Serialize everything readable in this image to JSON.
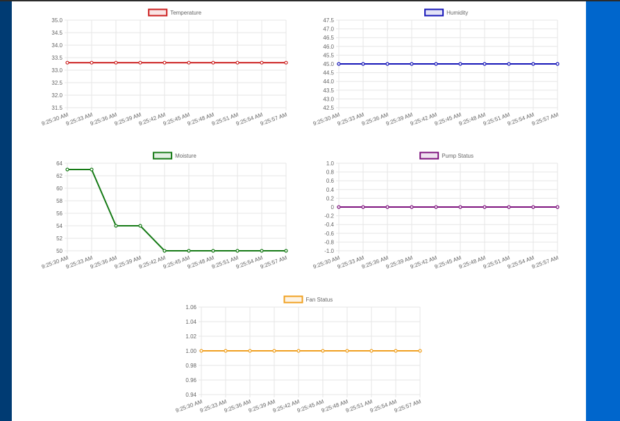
{
  "charts": [
    {
      "type": "line",
      "color": "#cc1f1f",
      "x": [
        "9:25:30 AM",
        "9:25:33 AM",
        "9:25:36 AM",
        "9:25:39 AM",
        "9:25:42 AM",
        "9:25:45 AM",
        "9:25:48 AM",
        "9:25:51 AM",
        "9:25:54 AM",
        "9:25:57 AM"
      ],
      "series": [
        {
          "name": "Temperature",
          "values": [
            33.3,
            33.3,
            33.3,
            33.3,
            33.3,
            33.3,
            33.3,
            33.3,
            33.3,
            33.3
          ]
        }
      ],
      "ylim": [
        31.5,
        35.0
      ],
      "yticks": [
        "35.0",
        "34.5",
        "34.0",
        "33.5",
        "33.0",
        "32.5",
        "32.0",
        "31.5"
      ],
      "legend_position": "top",
      "grid": true
    },
    {
      "type": "line",
      "color": "#1515b8",
      "x": [
        "9:25:30 AM",
        "9:25:33 AM",
        "9:25:36 AM",
        "9:25:39 AM",
        "9:25:42 AM",
        "9:25:45 AM",
        "9:25:48 AM",
        "9:25:51 AM",
        "9:25:54 AM",
        "9:25:57 AM"
      ],
      "series": [
        {
          "name": "Humidity",
          "values": [
            45,
            45,
            45,
            45,
            45,
            45,
            45,
            45,
            45,
            45
          ]
        }
      ],
      "ylim": [
        42.5,
        47.5
      ],
      "yticks": [
        "47.5",
        "47.0",
        "46.5",
        "46.0",
        "45.5",
        "45.0",
        "44.5",
        "44.0",
        "43.5",
        "43.0",
        "42.5"
      ],
      "legend_position": "top",
      "grid": true
    },
    {
      "type": "line",
      "color": "#157a15",
      "x": [
        "9:25:30 AM",
        "9:25:33 AM",
        "9:25:36 AM",
        "9:25:39 AM",
        "9:25:42 AM",
        "9:25:45 AM",
        "9:25:48 AM",
        "9:25:51 AM",
        "9:25:54 AM",
        "9:25:57 AM"
      ],
      "series": [
        {
          "name": "Moisture",
          "values": [
            63,
            63,
            54,
            54,
            50,
            50,
            50,
            50,
            50,
            50
          ]
        }
      ],
      "ylim": [
        50,
        64
      ],
      "yticks": [
        "64",
        "62",
        "60",
        "58",
        "56",
        "54",
        "52",
        "50"
      ],
      "legend_position": "top",
      "grid": true
    },
    {
      "type": "line",
      "color": "#7d117d",
      "x": [
        "9:25:30 AM",
        "9:25:33 AM",
        "9:25:36 AM",
        "9:25:39 AM",
        "9:25:42 AM",
        "9:25:45 AM",
        "9:25:48 AM",
        "9:25:51 AM",
        "9:25:54 AM",
        "9:25:57 AM"
      ],
      "series": [
        {
          "name": "Pump Status",
          "values": [
            0,
            0,
            0,
            0,
            0,
            0,
            0,
            0,
            0,
            0
          ]
        }
      ],
      "ylim": [
        -1.0,
        1.0
      ],
      "yticks": [
        "1.0",
        "0.8",
        "0.6",
        "0.4",
        "0.2",
        "0",
        "-0.2",
        "-0.4",
        "-0.6",
        "-0.8",
        "-1.0"
      ],
      "legend_position": "top",
      "grid": true
    },
    {
      "type": "line",
      "color": "#f0a020",
      "x": [
        "9:25:30 AM",
        "9:25:33 AM",
        "9:25:36 AM",
        "9:25:39 AM",
        "9:25:42 AM",
        "9:25:45 AM",
        "9:25:48 AM",
        "9:25:51 AM",
        "9:25:54 AM",
        "9:25:57 AM"
      ],
      "series": [
        {
          "name": "Fan Status",
          "values": [
            1,
            1,
            1,
            1,
            1,
            1,
            1,
            1,
            1,
            1
          ]
        }
      ],
      "ylim": [
        0.94,
        1.06
      ],
      "yticks": [
        "1.06",
        "1.04",
        "1.02",
        "1.00",
        "0.98",
        "0.96",
        "0.94"
      ],
      "legend_position": "top",
      "grid": true
    }
  ]
}
